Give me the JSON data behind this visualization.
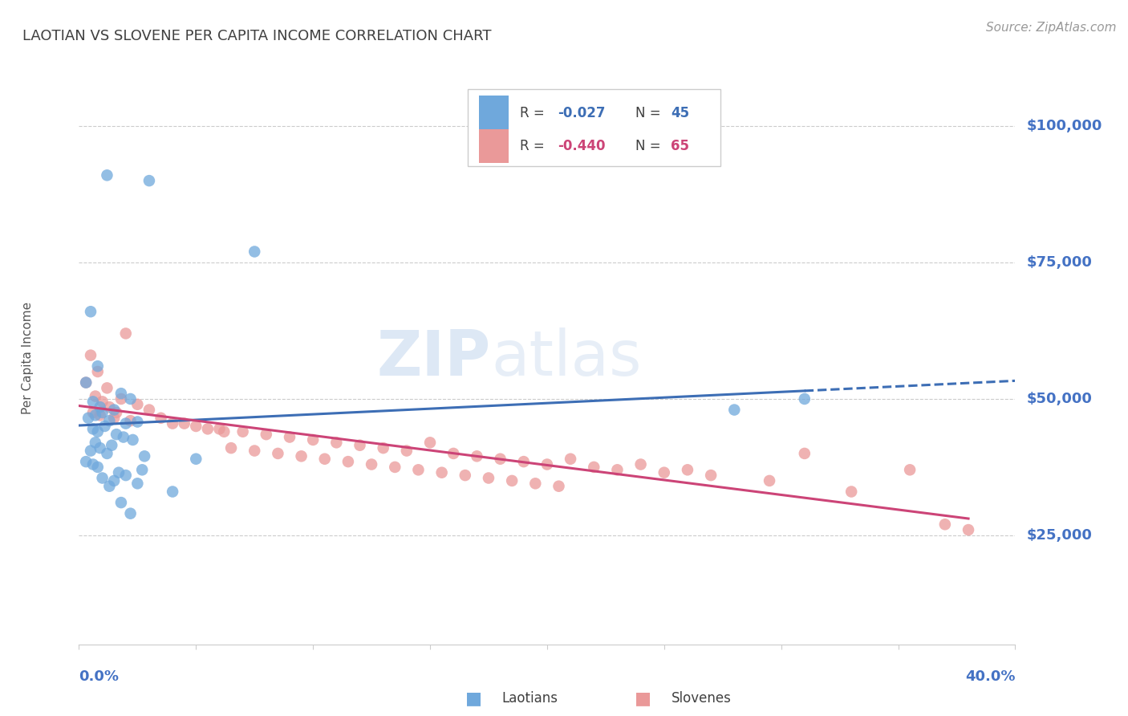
{
  "title": "LAOTIAN VS SLOVENE PER CAPITA INCOME CORRELATION CHART",
  "source": "Source: ZipAtlas.com",
  "ylabel": "Per Capita Income",
  "ytick_labels": [
    "$25,000",
    "$50,000",
    "$75,000",
    "$100,000"
  ],
  "ytick_values": [
    25000,
    50000,
    75000,
    100000
  ],
  "xmin": 0.0,
  "xmax": 0.4,
  "ymin": 5000,
  "ymax": 110000,
  "blue_R": "-0.027",
  "blue_N": "45",
  "pink_R": "-0.440",
  "pink_N": "65",
  "blue_color": "#6fa8dc",
  "pink_color": "#ea9999",
  "blue_line_color": "#3d6eb5",
  "pink_line_color": "#cc4477",
  "background_color": "#ffffff",
  "grid_color": "#cccccc",
  "title_color": "#404040",
  "axis_label_color": "#4472c4",
  "blue_points_x": [
    0.012,
    0.03,
    0.005,
    0.008,
    0.003,
    0.018,
    0.022,
    0.006,
    0.009,
    0.015,
    0.01,
    0.007,
    0.004,
    0.013,
    0.025,
    0.02,
    0.011,
    0.006,
    0.008,
    0.016,
    0.019,
    0.023,
    0.007,
    0.014,
    0.009,
    0.005,
    0.012,
    0.028,
    0.05,
    0.003,
    0.006,
    0.008,
    0.027,
    0.017,
    0.02,
    0.01,
    0.015,
    0.025,
    0.013,
    0.04,
    0.018,
    0.022,
    0.28,
    0.31,
    0.075
  ],
  "blue_points_y": [
    91000,
    90000,
    66000,
    56000,
    53000,
    51000,
    50000,
    49500,
    48500,
    48000,
    47500,
    47000,
    46500,
    46000,
    45800,
    45500,
    45000,
    44500,
    44000,
    43500,
    43000,
    42500,
    42000,
    41500,
    41000,
    40500,
    40000,
    39500,
    39000,
    38500,
    38000,
    37500,
    37000,
    36500,
    36000,
    35500,
    35000,
    34500,
    34000,
    33000,
    31000,
    29000,
    48000,
    50000,
    77000
  ],
  "pink_points_x": [
    0.02,
    0.005,
    0.008,
    0.012,
    0.018,
    0.025,
    0.03,
    0.006,
    0.009,
    0.015,
    0.022,
    0.04,
    0.05,
    0.06,
    0.07,
    0.08,
    0.09,
    0.1,
    0.11,
    0.12,
    0.13,
    0.14,
    0.15,
    0.16,
    0.17,
    0.18,
    0.19,
    0.2,
    0.21,
    0.22,
    0.23,
    0.24,
    0.25,
    0.26,
    0.27,
    0.003,
    0.007,
    0.01,
    0.013,
    0.016,
    0.035,
    0.045,
    0.055,
    0.065,
    0.075,
    0.085,
    0.095,
    0.105,
    0.115,
    0.125,
    0.135,
    0.145,
    0.155,
    0.165,
    0.175,
    0.185,
    0.195,
    0.205,
    0.31,
    0.37,
    0.38,
    0.295,
    0.33,
    0.355,
    0.062
  ],
  "pink_points_y": [
    62000,
    58000,
    55000,
    52000,
    50000,
    49000,
    48000,
    47500,
    47000,
    46500,
    46000,
    45500,
    45000,
    44500,
    44000,
    43500,
    43000,
    42500,
    42000,
    41500,
    41000,
    40500,
    42000,
    40000,
    39500,
    39000,
    38500,
    38000,
    39000,
    37500,
    37000,
    38000,
    36500,
    37000,
    36000,
    53000,
    50500,
    49500,
    48500,
    47500,
    46500,
    45500,
    44500,
    41000,
    40500,
    40000,
    39500,
    39000,
    38500,
    38000,
    37500,
    37000,
    36500,
    36000,
    35500,
    35000,
    34500,
    34000,
    40000,
    27000,
    26000,
    35000,
    33000,
    37000,
    44000
  ]
}
